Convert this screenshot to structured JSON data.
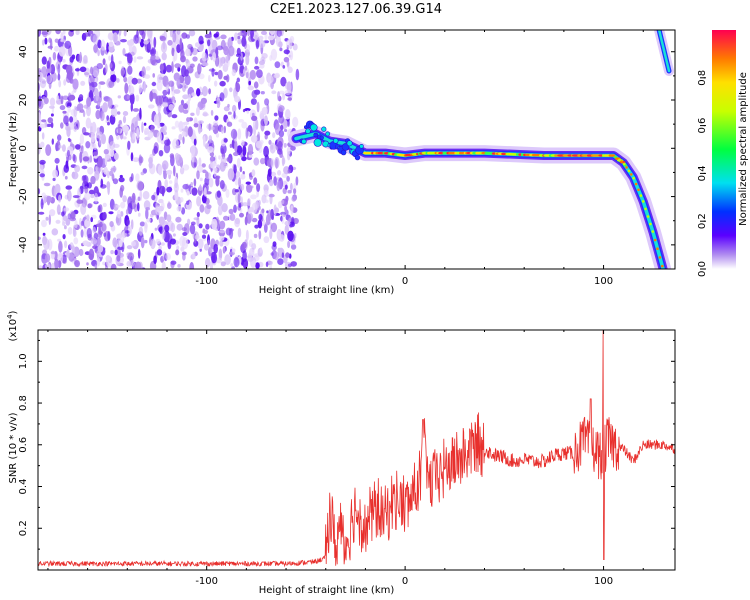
{
  "title": "C2E1.2023.127.06.39.G14",
  "chart_data": [
    {
      "type": "heatmap",
      "xlabel": "Height of straight line (km)",
      "ylabel": "Frequency (Hz)",
      "xlim": [
        -185,
        136
      ],
      "ylim": [
        -50,
        49
      ],
      "xticks": [
        -100,
        0,
        100
      ],
      "yticks": [
        -40,
        -20,
        0,
        20,
        40
      ],
      "grid": false,
      "noise_region_x": [
        -185,
        -55
      ],
      "track": {
        "x": [
          -55,
          -45,
          -38,
          -30,
          -25,
          -20,
          -10,
          0,
          10,
          40,
          70,
          90,
          100,
          105,
          110,
          115,
          120,
          125,
          130
        ],
        "freq": [
          4,
          6,
          3,
          2,
          0,
          -2,
          -2,
          -3,
          -2,
          -2,
          -3,
          -3,
          -3,
          -3,
          -6,
          -12,
          -22,
          -35,
          -50
        ]
      },
      "track2": {
        "x": [
          128,
          133
        ],
        "freq": [
          49,
          32
        ]
      },
      "colorbar": {
        "label": "Normalized spectral amplitude",
        "range": [
          0.0,
          1.0
        ],
        "ticks": [
          "0.0",
          "0.2",
          "0.4",
          "0.6",
          "0.8"
        ]
      }
    },
    {
      "type": "line",
      "xlabel": "Height of straight line (km)",
      "ylabel": "SNR (10 * v/v)",
      "multiplier": "(x10",
      "multiplier_exp": "4",
      "multiplier_close": ")",
      "xlim": [
        -185,
        136
      ],
      "ylim": [
        0.0,
        1.15
      ],
      "xticks": [
        -100,
        0,
        100
      ],
      "yticks": [
        "0.2",
        "0.4",
        "0.6",
        "0.8",
        "1.0"
      ],
      "color": "#e8302d",
      "series": [
        {
          "x": [
            -185,
            -150,
            -100,
            -60,
            -45,
            -40,
            -38,
            -35,
            -32,
            -30,
            -25,
            -20,
            -15,
            -10,
            -5,
            0,
            5,
            8,
            10,
            12,
            15,
            20,
            25,
            30,
            35,
            40,
            45,
            50,
            55,
            60,
            65,
            70,
            75,
            80,
            85,
            90,
            95,
            98,
            100,
            102,
            105,
            110,
            115,
            120,
            125,
            130,
            136
          ],
          "y": [
            0.03,
            0.03,
            0.03,
            0.03,
            0.04,
            0.06,
            0.3,
            0.1,
            0.25,
            0.12,
            0.3,
            0.2,
            0.3,
            0.25,
            0.35,
            0.3,
            0.38,
            0.45,
            0.6,
            0.4,
            0.45,
            0.48,
            0.52,
            0.55,
            0.6,
            0.58,
            0.55,
            0.54,
            0.52,
            0.53,
            0.52,
            0.52,
            0.55,
            0.56,
            0.56,
            0.62,
            0.58,
            0.55,
            0.55,
            0.62,
            0.6,
            0.58,
            0.52,
            0.6,
            0.6,
            0.6,
            0.58
          ]
        }
      ]
    }
  ]
}
